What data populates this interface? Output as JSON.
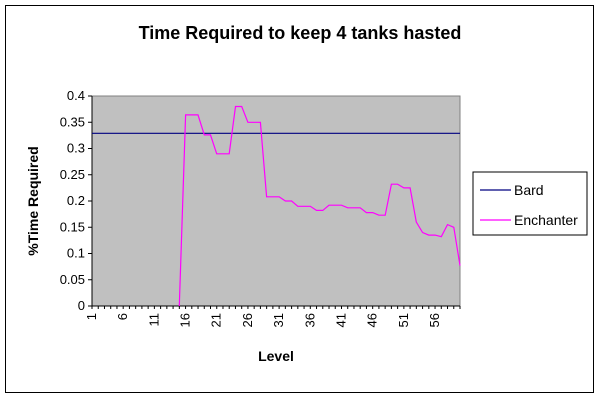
{
  "chart_data": {
    "type": "line",
    "title": "Time Required to keep 4 tanks hasted",
    "xlabel": "Level",
    "ylabel": "%Time Required",
    "ylim": [
      0,
      0.4
    ],
    "yticks": [
      "0",
      "0.05",
      "0.1",
      "0.15",
      "0.2",
      "0.25",
      "0.3",
      "0.35",
      "0.4"
    ],
    "xlim": [
      1,
      60
    ],
    "xticks": [
      "1",
      "6",
      "11",
      "16",
      "21",
      "26",
      "31",
      "36",
      "41",
      "46",
      "51",
      "56"
    ],
    "grid": false,
    "background_color": "#c0c0c0",
    "legend_position": "right",
    "series": [
      {
        "name": "Bard",
        "color": "#000080",
        "x": [
          1,
          60
        ],
        "values": [
          0.329,
          0.329
        ]
      },
      {
        "name": "Enchanter",
        "color": "#ff00ff",
        "x": [
          15,
          16,
          17,
          18,
          19,
          20,
          21,
          22,
          23,
          24,
          25,
          26,
          27,
          28,
          29,
          30,
          31,
          32,
          33,
          34,
          35,
          36,
          37,
          38,
          39,
          40,
          41,
          42,
          43,
          44,
          45,
          46,
          47,
          48,
          49,
          50,
          51,
          52,
          53,
          54,
          55,
          56,
          57,
          58,
          59,
          60
        ],
        "values": [
          0,
          0.364,
          0.364,
          0.364,
          0.326,
          0.326,
          0.29,
          0.29,
          0.29,
          0.38,
          0.38,
          0.35,
          0.35,
          0.35,
          0.208,
          0.208,
          0.208,
          0.2,
          0.2,
          0.19,
          0.19,
          0.19,
          0.182,
          0.182,
          0.192,
          0.192,
          0.192,
          0.187,
          0.187,
          0.187,
          0.178,
          0.178,
          0.173,
          0.173,
          0.232,
          0.232,
          0.225,
          0.225,
          0.16,
          0.14,
          0.135,
          0.135,
          0.132,
          0.155,
          0.15,
          0.077
        ]
      }
    ]
  }
}
